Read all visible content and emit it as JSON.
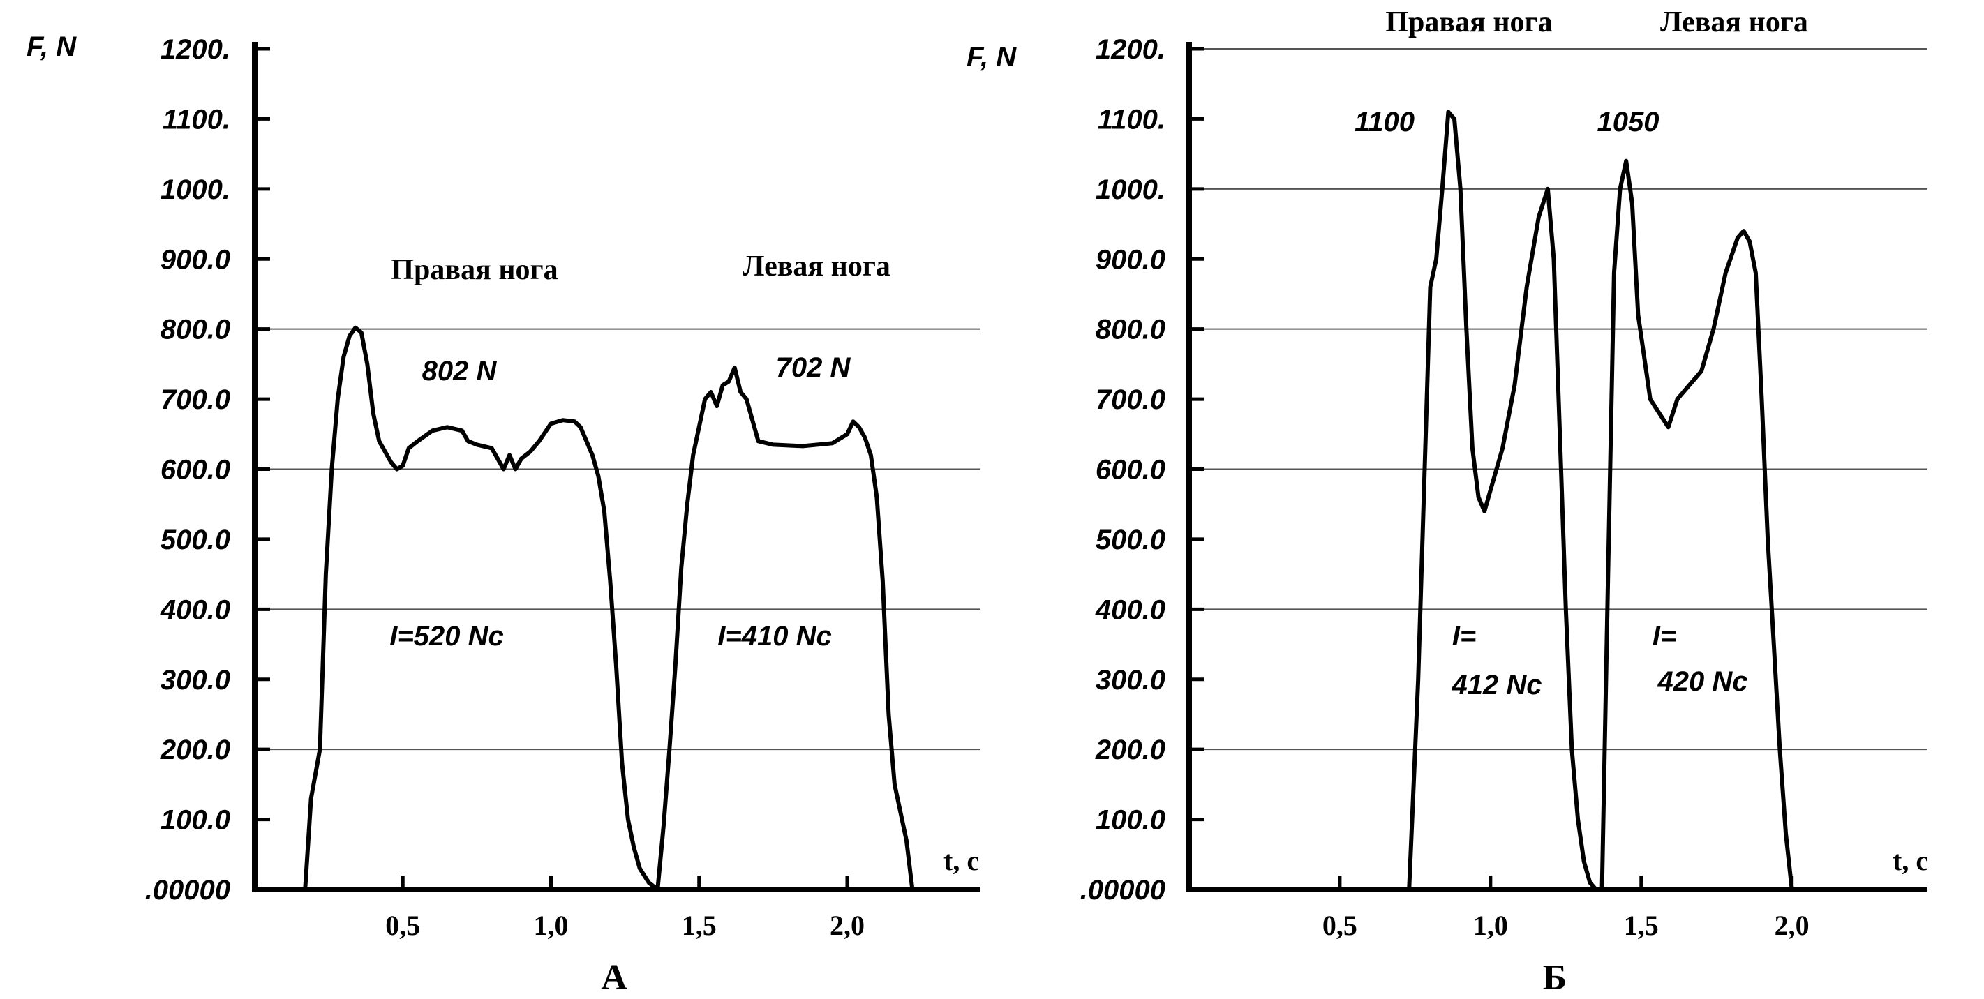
{
  "chart_data": [
    {
      "type": "line",
      "panel_label": "А",
      "ylabel": "F, N",
      "xlabel": "t, c",
      "yticks": [
        "1200.",
        "1100.",
        "1000.",
        "900.0",
        "800.0",
        "700.0",
        "600.0",
        "500.0",
        "400.0",
        "300.0",
        "200.0",
        "100.0",
        ".00000"
      ],
      "ytick_values": [
        1200,
        1100,
        1000,
        900,
        800,
        700,
        600,
        500,
        400,
        300,
        200,
        100,
        0
      ],
      "xticks": [
        "0,5",
        "1,0",
        "1,5",
        "2,0"
      ],
      "xtick_values": [
        0.5,
        1.0,
        1.5,
        2.0
      ],
      "xlim": [
        0,
        2.45
      ],
      "ylim": [
        0,
        1200
      ],
      "gridlines_y": [
        800,
        600,
        400,
        200
      ],
      "legend_labels": [
        "Правая нога",
        "Левая нога"
      ],
      "annotations": [
        "802 N",
        "702 N",
        "I=520 Nc",
        "I=410 Nc"
      ],
      "series": [
        {
          "x": [
            0.17,
            0.19,
            0.22,
            0.24,
            0.26,
            0.28,
            0.3,
            0.32,
            0.34,
            0.36,
            0.38,
            0.4,
            0.42,
            0.44,
            0.46,
            0.48,
            0.5,
            0.52,
            0.55,
            0.6,
            0.65,
            0.7,
            0.72,
            0.75,
            0.8,
            0.84,
            0.86,
            0.88,
            0.9,
            0.93,
            0.96,
            1.0,
            1.04,
            1.08,
            1.1,
            1.12,
            1.14,
            1.16,
            1.18,
            1.2,
            1.22,
            1.24,
            1.26,
            1.28,
            1.3,
            1.33,
            1.36
          ],
          "y": [
            0,
            130,
            200,
            450,
            600,
            700,
            760,
            790,
            802,
            795,
            750,
            680,
            640,
            625,
            610,
            600,
            605,
            630,
            640,
            655,
            660,
            655,
            640,
            635,
            630,
            600,
            620,
            600,
            615,
            625,
            640,
            665,
            670,
            668,
            660,
            640,
            620,
            590,
            540,
            440,
            320,
            180,
            100,
            60,
            30,
            10,
            0
          ]
        },
        {
          "x": [
            1.36,
            1.38,
            1.4,
            1.42,
            1.44,
            1.46,
            1.48,
            1.5,
            1.52,
            1.54,
            1.56,
            1.58,
            1.6,
            1.62,
            1.64,
            1.66,
            1.7,
            1.75,
            1.85,
            1.95,
            2.0,
            2.02,
            2.04,
            2.06,
            2.08,
            2.1,
            2.12,
            2.14,
            2.16,
            2.18,
            2.2,
            2.22
          ],
          "y": [
            0,
            90,
            200,
            320,
            460,
            550,
            620,
            660,
            700,
            710,
            690,
            720,
            725,
            745,
            710,
            700,
            640,
            635,
            633,
            637,
            650,
            668,
            660,
            645,
            620,
            560,
            440,
            250,
            150,
            110,
            70,
            0
          ]
        }
      ]
    },
    {
      "type": "line",
      "panel_label": "Б",
      "ylabel": "F, N",
      "xlabel": "t, c",
      "yticks": [
        "1200.",
        "1100.",
        "1000.",
        "900.0",
        "800.0",
        "700.0",
        "600.0",
        "500.0",
        "400.0",
        "300.0",
        "200.0",
        "100.0",
        ".00000"
      ],
      "ytick_values": [
        1200,
        1100,
        1000,
        900,
        800,
        700,
        600,
        500,
        400,
        300,
        200,
        100,
        0
      ],
      "xticks": [
        "0,5",
        "1,0",
        "1,5",
        "2,0"
      ],
      "xtick_values": [
        0.5,
        1.0,
        1.5,
        2.0
      ],
      "xlim": [
        0,
        2.45
      ],
      "ylim": [
        0,
        1200
      ],
      "gridlines_y": [
        1200,
        1000,
        800,
        600,
        400,
        200
      ],
      "legend_labels": [
        "Правая нога",
        "Левая нога"
      ],
      "annotations": [
        "1100",
        "1050",
        "I=",
        "412 Nc",
        "I=",
        "420 Nc"
      ],
      "series": [
        {
          "x": [
            0.73,
            0.76,
            0.8,
            0.82,
            0.84,
            0.86,
            0.88,
            0.9,
            0.92,
            0.94,
            0.96,
            0.98,
            1.0,
            1.04,
            1.08,
            1.12,
            1.16,
            1.19,
            1.21,
            1.23,
            1.25,
            1.27,
            1.29,
            1.31,
            1.33,
            1.35,
            1.37
          ],
          "y": [
            0,
            300,
            860,
            900,
            1000,
            1110,
            1100,
            1000,
            800,
            630,
            560,
            540,
            570,
            630,
            720,
            860,
            960,
            1000,
            900,
            650,
            400,
            200,
            100,
            40,
            10,
            0,
            0
          ]
        },
        {
          "x": [
            1.37,
            1.39,
            1.41,
            1.43,
            1.45,
            1.47,
            1.49,
            1.51,
            1.53,
            1.56,
            1.59,
            1.62,
            1.66,
            1.7,
            1.74,
            1.78,
            1.82,
            1.84,
            1.86,
            1.88,
            1.9,
            1.92,
            1.94,
            1.96,
            1.98,
            2.0
          ],
          "y": [
            0,
            450,
            880,
            1000,
            1040,
            980,
            820,
            760,
            700,
            680,
            660,
            700,
            720,
            740,
            800,
            880,
            930,
            940,
            925,
            880,
            700,
            500,
            350,
            200,
            80,
            0
          ]
        }
      ]
    }
  ]
}
